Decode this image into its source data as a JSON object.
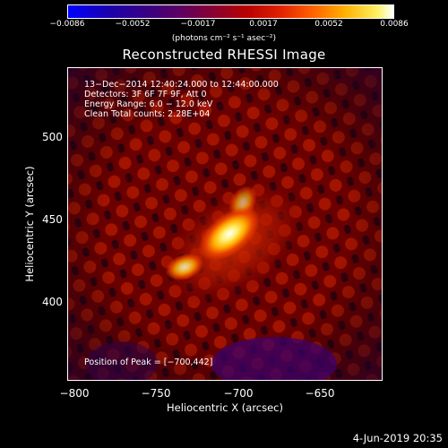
{
  "colorbar": {
    "ticks": [
      "−0.0086",
      "−0.0052",
      "−0.0017",
      "0.0017",
      "0.0052",
      "0.0086"
    ],
    "unit": "(photons cm⁻² s⁻¹ asec⁻²)"
  },
  "title": "Reconstructed RHESSI Image",
  "info": {
    "line1": "13−Dec−2014 12:40:24.000 to 12:44:00.000",
    "line2": "Detectors: 3F 6F 7F 9F, Att 0",
    "line3": "Energy Range: 6.0 − 12.0 keV",
    "line4": "Clean     Total counts: 2.28E+04"
  },
  "peak": "Position of Peak = [−700,442]",
  "xaxis": {
    "label": "Heliocentric X (arcsec)",
    "ticks": [
      "−800",
      "−750",
      "−700",
      "−650"
    ]
  },
  "yaxis": {
    "label": "Heliocentric Y (arcsec)",
    "ticks": [
      "500",
      "450",
      "400"
    ]
  },
  "footer_date": "4-Jun-2019 20:35"
}
